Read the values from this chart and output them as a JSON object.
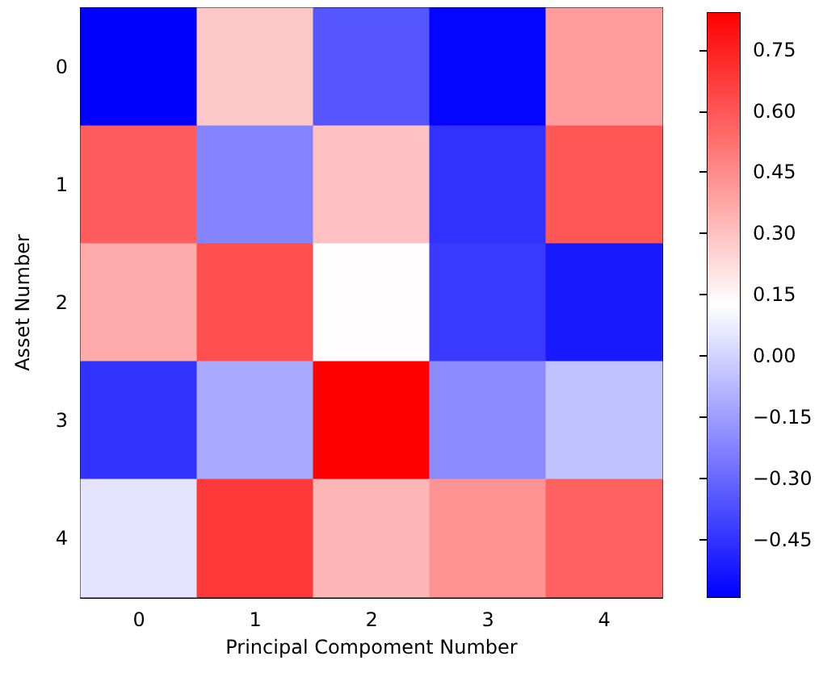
{
  "chart_data": {
    "type": "heatmap",
    "xlabel": "Principal Compoment Number",
    "ylabel": "Asset Number",
    "categories": [
      "0",
      "1",
      "2",
      "3",
      "4"
    ],
    "y_categories": [
      "0",
      "1",
      "2",
      "3",
      "4"
    ],
    "cells": [
      [
        -0.59,
        0.28,
        -0.35,
        -0.58,
        0.4
      ],
      [
        0.58,
        -0.22,
        0.3,
        -0.45,
        0.6
      ],
      [
        0.36,
        0.62,
        0.13,
        -0.43,
        -0.52
      ],
      [
        -0.45,
        -0.12,
        0.84,
        -0.2,
        -0.05
      ],
      [
        0.05,
        0.68,
        0.33,
        0.43,
        0.57
      ]
    ],
    "clim": [
      -0.59,
      0.84
    ],
    "cticks": [
      {
        "value": -0.45,
        "label": "−0.45"
      },
      {
        "value": -0.3,
        "label": "−0.30"
      },
      {
        "value": -0.15,
        "label": "−0.15"
      },
      {
        "value": 0,
        "label": "0.00"
      },
      {
        "value": 0.15,
        "label": "0.15"
      },
      {
        "value": 0.3,
        "label": "0.30"
      },
      {
        "value": 0.45,
        "label": "0.45"
      },
      {
        "value": 0.6,
        "label": "0.60"
      },
      {
        "value": 0.75,
        "label": "0.75"
      }
    ]
  }
}
